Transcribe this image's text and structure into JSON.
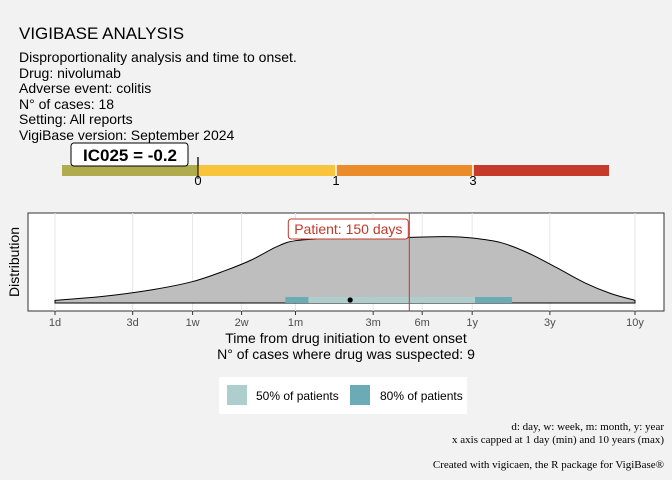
{
  "header": {
    "title": "VIGIBASE ANALYSIS",
    "subtitle_lines": [
      "Disproportionality analysis and time to onset.",
      "Drug: nivolumab",
      "Adverse event: colitis",
      "N° of cases: 18",
      "Setting: All reports",
      "VigiBase version: September 2024"
    ]
  },
  "ic_scale": {
    "label": "IC025 = -0.2",
    "value": -0.2,
    "ticks": [
      "0",
      "1",
      "3"
    ],
    "segment_colors": [
      "#b0ab4c",
      "#f8c43c",
      "#ea8c2a",
      "#c63a2a"
    ]
  },
  "chart_data": {
    "type": "area",
    "xlabel": "Time from drug initiation to event onset",
    "xlabel2": "N° of cases where drug was suspected: 9",
    "ylabel": "Distribution",
    "x_scale": "log",
    "x_ticks": [
      {
        "label": "1d",
        "days": 1
      },
      {
        "label": "3d",
        "days": 3
      },
      {
        "label": "1w",
        "days": 7
      },
      {
        "label": "2w",
        "days": 14
      },
      {
        "label": "1m",
        "days": 30
      },
      {
        "label": "3m",
        "days": 90
      },
      {
        "label": "6m",
        "days": 180
      },
      {
        "label": "1y",
        "days": 365
      },
      {
        "label": "3y",
        "days": 1095
      },
      {
        "label": "10y",
        "days": 3650
      }
    ],
    "xlim_days": [
      1,
      3650
    ],
    "density": [
      {
        "days": 1,
        "y": 0.04
      },
      {
        "days": 2,
        "y": 0.1
      },
      {
        "days": 4,
        "y": 0.2
      },
      {
        "days": 7,
        "y": 0.32
      },
      {
        "days": 11,
        "y": 0.48
      },
      {
        "days": 16,
        "y": 0.64
      },
      {
        "days": 23,
        "y": 0.84
      },
      {
        "days": 30,
        "y": 0.93
      },
      {
        "days": 50,
        "y": 0.965
      },
      {
        "days": 90,
        "y": 0.975
      },
      {
        "days": 150,
        "y": 0.98
      },
      {
        "days": 250,
        "y": 0.99
      },
      {
        "days": 365,
        "y": 0.97
      },
      {
        "days": 550,
        "y": 0.9
      },
      {
        "days": 800,
        "y": 0.75
      },
      {
        "days": 1200,
        "y": 0.53
      },
      {
        "days": 1800,
        "y": 0.3
      },
      {
        "days": 2600,
        "y": 0.14
      },
      {
        "days": 3650,
        "y": 0.04
      }
    ],
    "interval_50": {
      "from_days": 36,
      "to_days": 380
    },
    "interval_80": {
      "from_days": 26,
      "to_days": 640
    },
    "median_days": 65,
    "patient": {
      "label": "Patient: 150 days",
      "days": 150
    },
    "legend": [
      "50% of patients",
      "80% of patients"
    ],
    "colors": {
      "density": "#bebebe",
      "interval_50": "#aecece",
      "interval_80": "#6aabb6",
      "patient_line": "#c0392b"
    }
  },
  "footer": {
    "lines": [
      "d: day, w: week, m: month, y: year",
      "x axis capped at 1 day (min) and 10 years (max)"
    ],
    "credit": "Created with vigicaen, the R package for VigiBase®"
  }
}
